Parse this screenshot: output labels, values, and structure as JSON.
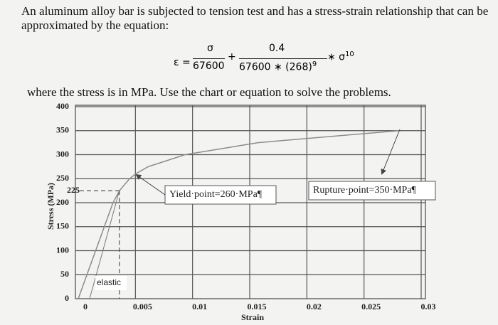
{
  "intro": "An aluminum alloy bar is subjected to tension test and has a stress-strain relationship that can be approximated by the equation:",
  "equation": {
    "lhs": "ε =",
    "frac1_num": "σ",
    "frac1_den": "67600",
    "plus": "+",
    "frac2_num": "0.4",
    "frac2_den": "67600 ∗ (268)",
    "den_exp": "9",
    "tail": "∗ σ",
    "tail_exp": "10"
  },
  "instruction": "where the stress is in MPa. Use the chart or equation to solve the problems.",
  "chart_data": {
    "type": "line",
    "x": [
      0,
      0.00304,
      0.0036,
      0.00449,
      0.00502,
      0.00612,
      0.00934,
      0.01572,
      0.02808
    ],
    "series": [
      {
        "color": "#8c8c8c",
        "values": [
          0,
          200,
          225,
          250,
          260,
          275,
          300,
          325,
          350
        ]
      }
    ],
    "xlim": [
      0,
      0.03
    ],
    "xticks": [
      0,
      0.005,
      0.01,
      0.015,
      0.02,
      0.025,
      0.03
    ],
    "ylim": [
      0,
      400
    ],
    "yticks": [
      0,
      50,
      100,
      150,
      200,
      250,
      300,
      350,
      400
    ],
    "marked_stress": 225,
    "xlabel": "Strain",
    "ylabel": "Stress (MPa)",
    "grid": true,
    "annotations": {
      "elastic": "elastic",
      "yield": "Yield·point=260·MPa¶",
      "rupture": "Rupture·point=350·MPa¶"
    }
  }
}
